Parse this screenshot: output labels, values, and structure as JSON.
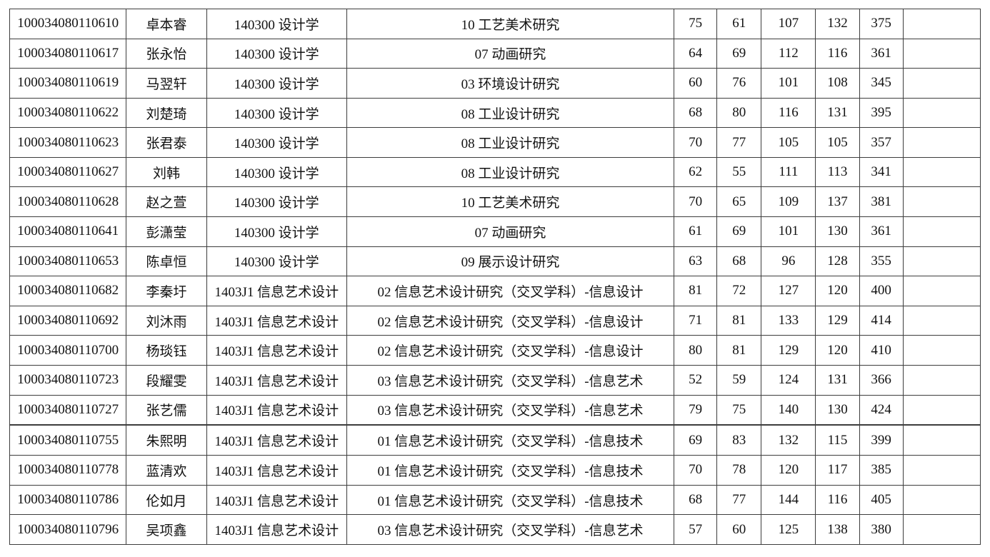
{
  "table": {
    "rows": [
      {
        "id": "100034080110610",
        "name": "卓本睿",
        "major": "140300 设计学",
        "direction": "10 工艺美术研究",
        "s1": "75",
        "s2": "61",
        "s3": "107",
        "s4": "132",
        "total": "375",
        "note": ""
      },
      {
        "id": "100034080110617",
        "name": "张永怡",
        "major": "140300 设计学",
        "direction": "07 动画研究",
        "s1": "64",
        "s2": "69",
        "s3": "112",
        "s4": "116",
        "total": "361",
        "note": ""
      },
      {
        "id": "100034080110619",
        "name": "马翌轩",
        "major": "140300 设计学",
        "direction": "03 环境设计研究",
        "s1": "60",
        "s2": "76",
        "s3": "101",
        "s4": "108",
        "total": "345",
        "note": ""
      },
      {
        "id": "100034080110622",
        "name": "刘楚琦",
        "major": "140300 设计学",
        "direction": "08 工业设计研究",
        "s1": "68",
        "s2": "80",
        "s3": "116",
        "s4": "131",
        "total": "395",
        "note": ""
      },
      {
        "id": "100034080110623",
        "name": "张君泰",
        "major": "140300 设计学",
        "direction": "08 工业设计研究",
        "s1": "70",
        "s2": "77",
        "s3": "105",
        "s4": "105",
        "total": "357",
        "note": ""
      },
      {
        "id": "100034080110627",
        "name": "刘韩",
        "major": "140300 设计学",
        "direction": "08 工业设计研究",
        "s1": "62",
        "s2": "55",
        "s3": "111",
        "s4": "113",
        "total": "341",
        "note": ""
      },
      {
        "id": "100034080110628",
        "name": "赵之萱",
        "major": "140300 设计学",
        "direction": "10 工艺美术研究",
        "s1": "70",
        "s2": "65",
        "s3": "109",
        "s4": "137",
        "total": "381",
        "note": ""
      },
      {
        "id": "100034080110641",
        "name": "彭潇莹",
        "major": "140300 设计学",
        "direction": "07 动画研究",
        "s1": "61",
        "s2": "69",
        "s3": "101",
        "s4": "130",
        "total": "361",
        "note": ""
      },
      {
        "id": "100034080110653",
        "name": "陈卓恒",
        "major": "140300 设计学",
        "direction": "09 展示设计研究",
        "s1": "63",
        "s2": "68",
        "s3": "96",
        "s4": "128",
        "total": "355",
        "note": ""
      },
      {
        "id": "100034080110682",
        "name": "李秦圩",
        "major": "1403J1 信息艺术设计",
        "direction": "02 信息艺术设计研究（交叉学科）-信息设计",
        "s1": "81",
        "s2": "72",
        "s3": "127",
        "s4": "120",
        "total": "400",
        "note": ""
      },
      {
        "id": "100034080110692",
        "name": "刘沐雨",
        "major": "1403J1 信息艺术设计",
        "direction": "02 信息艺术设计研究（交叉学科）-信息设计",
        "s1": "71",
        "s2": "81",
        "s3": "133",
        "s4": "129",
        "total": "414",
        "note": ""
      },
      {
        "id": "100034080110700",
        "name": "杨琰钰",
        "major": "1403J1 信息艺术设计",
        "direction": "02 信息艺术设计研究（交叉学科）-信息设计",
        "s1": "80",
        "s2": "81",
        "s3": "129",
        "s4": "120",
        "total": "410",
        "note": ""
      },
      {
        "id": "100034080110723",
        "name": "段耀雯",
        "major": "1403J1 信息艺术设计",
        "direction": "03 信息艺术设计研究（交叉学科）-信息艺术",
        "s1": "52",
        "s2": "59",
        "s3": "124",
        "s4": "131",
        "total": "366",
        "note": ""
      },
      {
        "id": "100034080110727",
        "name": "张艺儒",
        "major": "1403J1 信息艺术设计",
        "direction": "03 信息艺术设计研究（交叉学科）-信息艺术",
        "s1": "79",
        "s2": "75",
        "s3": "140",
        "s4": "130",
        "total": "424",
        "note": ""
      },
      {
        "id": "100034080110755",
        "name": "朱熙明",
        "major": "1403J1 信息艺术设计",
        "direction": "01 信息艺术设计研究（交叉学科）-信息技术",
        "s1": "69",
        "s2": "83",
        "s3": "132",
        "s4": "115",
        "total": "399",
        "note": ""
      },
      {
        "id": "100034080110778",
        "name": "蓝清欢",
        "major": "1403J1 信息艺术设计",
        "direction": "01 信息艺术设计研究（交叉学科）-信息技术",
        "s1": "70",
        "s2": "78",
        "s3": "120",
        "s4": "117",
        "total": "385",
        "note": ""
      },
      {
        "id": "100034080110786",
        "name": "伦如月",
        "major": "1403J1 信息艺术设计",
        "direction": "01 信息艺术设计研究（交叉学科）-信息技术",
        "s1": "68",
        "s2": "77",
        "s3": "144",
        "s4": "116",
        "total": "405",
        "note": ""
      },
      {
        "id": "100034080110796",
        "name": "吴项鑫",
        "major": "1403J1 信息艺术设计",
        "direction": "03 信息艺术设计研究（交叉学科）-信息艺术",
        "s1": "57",
        "s2": "60",
        "s3": "125",
        "s4": "138",
        "total": "380",
        "note": ""
      }
    ]
  }
}
